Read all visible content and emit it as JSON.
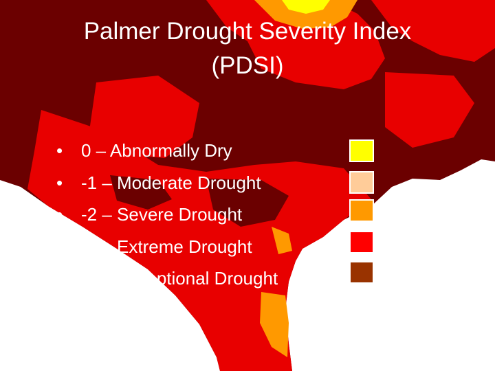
{
  "title": {
    "line1": "Palmer Drought Severity Index",
    "line2": "(PDSI)"
  },
  "legend": [
    {
      "text": "0 – Abnormally Dry",
      "color": "#ffff00"
    },
    {
      "text": "-1 – Moderate Drought",
      "color": "#ffcc99"
    },
    {
      "text": "-2 – Severe Drought",
      "color": "#ff9900"
    },
    {
      "text": "-3 – Extreme Drought",
      "color": "#ff0000"
    },
    {
      "text": "-4 – Exceptional Drought",
      "color": "#993300"
    }
  ],
  "bullet_glyph": "•",
  "map_colors": {
    "exceptional": "#6b0000",
    "extreme": "#e80000",
    "severe": "#ff9900",
    "moderate": "#ffcc99",
    "abnormal": "#ffff00",
    "water": "#ffffff"
  }
}
